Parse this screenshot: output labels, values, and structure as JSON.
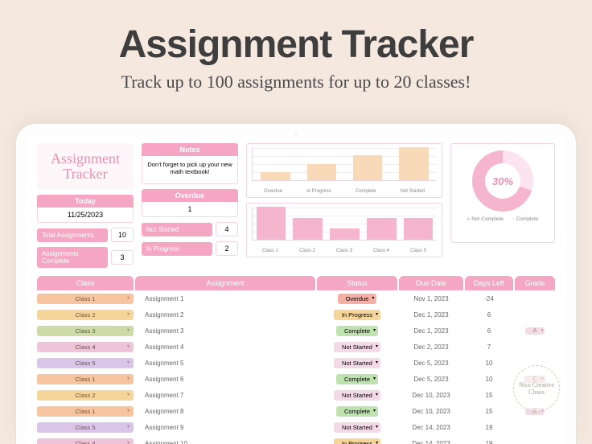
{
  "hero": {
    "title": "Assignment Tracker",
    "subtitle": "Track up to 100 assignments for up to 20 classes!"
  },
  "logo": "Assignment Tracker",
  "notes": {
    "header": "Notes",
    "body": "Don't forget to pick up your new math textbook!"
  },
  "today": {
    "header": "Today",
    "value": "11/25/2023"
  },
  "stats": {
    "total": {
      "label": "Total Assignments",
      "value": "10"
    },
    "complete": {
      "label": "Assignments Complete",
      "value": "3"
    },
    "overdue": {
      "header": "Overdue",
      "value": "1"
    },
    "notstarted": {
      "label": "Not Started",
      "value": "4"
    },
    "inprogress": {
      "label": "In Progress",
      "value": "2"
    }
  },
  "chart_status": {
    "type": "bar",
    "categories": [
      "Overdue",
      "In Progress",
      "Complete",
      "Not Started"
    ],
    "values": [
      1,
      2,
      3,
      4
    ],
    "ylim": [
      0,
      4
    ],
    "ytick_step": 1,
    "bar_color": "#f8d9b8",
    "grid_color": "#f4eef2",
    "axis_color": "#e8d8e0"
  },
  "chart_class": {
    "type": "bar",
    "categories": [
      "Class 1",
      "Class 2",
      "Class 3",
      "Class 4",
      "Class 5"
    ],
    "values": [
      3,
      2,
      1,
      2,
      2
    ],
    "ylim": [
      0,
      3
    ],
    "bar_color": "#f5b5cc",
    "grid_color": "#f4eef2",
    "axis_color": "#e8d8e0"
  },
  "donut": {
    "type": "donut",
    "center_label": "30%",
    "slices": [
      {
        "label": "Not Complete",
        "value": 70,
        "color": "#f5b5cc"
      },
      {
        "label": "Complete",
        "value": 30,
        "color": "#fbe4ee"
      }
    ],
    "center_color": "#ea8fb0"
  },
  "columns": [
    "Class",
    "Assignment",
    "Status",
    "Due Date",
    "Days Left",
    "Grade"
  ],
  "class_colors": {
    "Class 1": "#f7c4a0",
    "Class 2": "#f6d59a",
    "Class 3": "#cddba8",
    "Class 4": "#eec5d8",
    "Class 5": "#d8c5e8"
  },
  "status_colors": {
    "Overdue": "#f5b0a6",
    "In Progress": "#f6d59a",
    "Complete": "#bfe2b0",
    "Not Started": "#f3dbe5"
  },
  "rows": [
    {
      "class": "Class 1",
      "assignment": "Assignment 1",
      "status": "Overdue",
      "due": "Nov 1, 2023",
      "days": "-24",
      "grade": ""
    },
    {
      "class": "Class 2",
      "assignment": "Assignment 2",
      "status": "In Progress",
      "due": "Dec 1, 2023",
      "days": "6",
      "grade": ""
    },
    {
      "class": "Class 3",
      "assignment": "Assignment 3",
      "status": "Complete",
      "due": "Dec 1, 2023",
      "days": "6",
      "grade": "A"
    },
    {
      "class": "Class 4",
      "assignment": "Assignment 4",
      "status": "Not Started",
      "due": "Dec 2, 2023",
      "days": "7",
      "grade": ""
    },
    {
      "class": "Class 5",
      "assignment": "Assignment 5",
      "status": "Not Started",
      "due": "Dec 5, 2023",
      "days": "10",
      "grade": ""
    },
    {
      "class": "Class 1",
      "assignment": "Assignment 6",
      "status": "Complete",
      "due": "Dec 5, 2023",
      "days": "10",
      "grade": "C"
    },
    {
      "class": "Class 2",
      "assignment": "Assignment 7",
      "status": "Not Started",
      "due": "Dec 10, 2023",
      "days": "15",
      "grade": ""
    },
    {
      "class": "Class 1",
      "assignment": "Assignment 8",
      "status": "Complete",
      "due": "Dec 10, 2023",
      "days": "15",
      "grade": "B"
    },
    {
      "class": "Class 5",
      "assignment": "Assignment 9",
      "status": "Not Started",
      "due": "Dec 14, 2023",
      "days": "19",
      "grade": ""
    },
    {
      "class": "Class 4",
      "assignment": "Assignment 10",
      "status": "In Progress",
      "due": "Dec 14, 2023",
      "days": "19",
      "grade": ""
    }
  ],
  "watermark": "Nics Creative Chaos"
}
